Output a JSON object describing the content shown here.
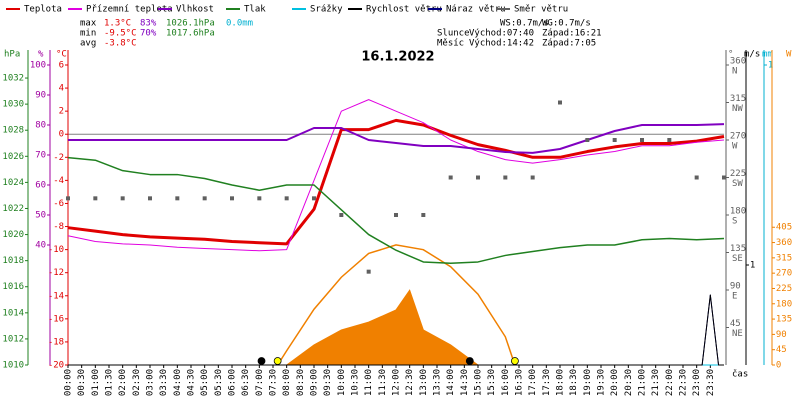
{
  "chart_data": {
    "type": "line",
    "title": "16.1.2022",
    "x_label": "čas",
    "xlim": [
      0,
      24
    ],
    "xticks": [
      {
        "value": 0,
        "label": "00:00"
      },
      {
        "value": 0.5,
        "label": "00:30"
      },
      {
        "value": 1,
        "label": "01:00"
      },
      {
        "value": 1.5,
        "label": "01:30"
      },
      {
        "value": 2,
        "label": "02:00"
      },
      {
        "value": 2.5,
        "label": "02:30"
      },
      {
        "value": 3,
        "label": "03:00"
      },
      {
        "value": 3.5,
        "label": "03:30"
      },
      {
        "value": 4,
        "label": "04:00"
      },
      {
        "value": 4.5,
        "label": "04:30"
      },
      {
        "value": 5,
        "label": "05:00"
      },
      {
        "value": 5.5,
        "label": "05:30"
      },
      {
        "value": 6,
        "label": "06:00"
      },
      {
        "value": 6.5,
        "label": "06:30"
      },
      {
        "value": 7,
        "label": "07:00"
      },
      {
        "value": 7.5,
        "label": "07:30"
      },
      {
        "value": 8,
        "label": "08:00"
      },
      {
        "value": 8.5,
        "label": "08:30"
      },
      {
        "value": 9,
        "label": "09:00"
      },
      {
        "value": 9.5,
        "label": "09:30"
      },
      {
        "value": 10,
        "label": "10:00"
      },
      {
        "value": 10.5,
        "label": "10:30"
      },
      {
        "value": 11,
        "label": "11:00"
      },
      {
        "value": 11.5,
        "label": "11:30"
      },
      {
        "value": 12,
        "label": "12:00"
      },
      {
        "value": 12.5,
        "label": "12:30"
      },
      {
        "value": 13,
        "label": "13:00"
      },
      {
        "value": 13.5,
        "label": "13:30"
      },
      {
        "value": 14,
        "label": "14:00"
      },
      {
        "value": 14.5,
        "label": "14:30"
      },
      {
        "value": 15,
        "label": "15:00"
      },
      {
        "value": 15.5,
        "label": "15:30"
      },
      {
        "value": 16,
        "label": "16:00"
      },
      {
        "value": 16.5,
        "label": "16:30"
      },
      {
        "value": 17,
        "label": "17:00"
      },
      {
        "value": 17.5,
        "label": "17:30"
      },
      {
        "value": 18,
        "label": "18:00"
      },
      {
        "value": 18.5,
        "label": "18:30"
      },
      {
        "value": 19,
        "label": "19:00"
      },
      {
        "value": 19.5,
        "label": "19:30"
      },
      {
        "value": 20,
        "label": "20:00"
      },
      {
        "value": 20.5,
        "label": "20:30"
      },
      {
        "value": 21,
        "label": "21:00"
      },
      {
        "value": 21.5,
        "label": "21:30"
      },
      {
        "value": 22,
        "label": "22:00"
      },
      {
        "value": 22.5,
        "label": "22:30"
      },
      {
        "value": 23,
        "label": "23:00"
      },
      {
        "value": 23.5,
        "label": "23:30"
      }
    ],
    "axis_labels": {
      "y": "°C",
      "y2": "hPa",
      "y3": "%",
      "y4": "°",
      "y5": "m/s",
      "y6": "mm",
      "y7": "W"
    },
    "ylim": [
      -20,
      6
    ],
    "yticks": [
      6,
      4,
      2,
      0,
      -2,
      -4,
      -6,
      -8,
      -10,
      -12,
      -14,
      -16,
      -18,
      -20
    ],
    "y2lim": [
      1010,
      1033
    ],
    "y2ticks": [
      1032,
      1030,
      1028,
      1026,
      1024,
      1022,
      1020,
      1018,
      1016,
      1014,
      1012,
      1010
    ],
    "y3lim": [
      0,
      100
    ],
    "y3ticks": [
      100,
      90,
      80,
      70,
      60,
      50,
      40
    ],
    "y4lim": [
      0,
      360
    ],
    "y4ticks": [
      360,
      315,
      270,
      225,
      180,
      135,
      90,
      45
    ],
    "y4tick_names": [
      "N",
      "NW",
      "W",
      "SW",
      "S",
      "SE",
      "E",
      "NE"
    ],
    "y5lim": [
      0,
      3
    ],
    "y5ticks": [
      1
    ],
    "y6lim": [
      0,
      1
    ],
    "y6ticks": [
      1
    ],
    "y7lim": [
      0,
      882
    ],
    "y7ticks": [
      405,
      360,
      315,
      270,
      225,
      180,
      135,
      90,
      45,
      0
    ],
    "hline": 0,
    "x": [
      0,
      1,
      2,
      3,
      4,
      5,
      6,
      7,
      8,
      9,
      10,
      11,
      12,
      13,
      14,
      15,
      16,
      17,
      18,
      19,
      20,
      21,
      22,
      23,
      24
    ],
    "series": [
      {
        "name": "Teplota",
        "color": "#e00000",
        "axis": "y",
        "style": "line",
        "width": 3,
        "values": [
          -8.1,
          -8.4,
          -8.7,
          -8.9,
          -9.0,
          -9.1,
          -9.3,
          -9.4,
          -9.5,
          -6.5,
          0.4,
          0.4,
          1.2,
          0.8,
          -0.1,
          -0.9,
          -1.4,
          -2.0,
          -2.0,
          -1.5,
          -1.1,
          -0.8,
          -0.8,
          -0.6,
          -0.2
        ]
      },
      {
        "name": "Přízemní teplota",
        "color": "#e000e0",
        "axis": "y",
        "style": "line",
        "width": 1,
        "values": [
          -8.8,
          -9.3,
          -9.5,
          -9.6,
          -9.8,
          -9.9,
          -10.0,
          -10.1,
          -10.0,
          -4.0,
          2.0,
          3.0,
          2.0,
          1.0,
          -0.5,
          -1.5,
          -2.2,
          -2.5,
          -2.2,
          -1.8,
          -1.5,
          -1.0,
          -1.0,
          -0.7,
          -0.5
        ]
      },
      {
        "name": "Vlhkost",
        "color": "#8000c0",
        "axis": "y3",
        "style": "line",
        "width": 2,
        "values": [
          75,
          75,
          75,
          75,
          75,
          75,
          75,
          75,
          75,
          79,
          79,
          75,
          74,
          73,
          73,
          72,
          71,
          70.7,
          72,
          75,
          78,
          80,
          80,
          80,
          80.3
        ]
      },
      {
        "name": "Tlak",
        "color": "#208020",
        "axis": "y2",
        "style": "line",
        "width": 1.5,
        "values": [
          1025.9,
          1025.7,
          1024.9,
          1024.6,
          1024.6,
          1024.3,
          1023.8,
          1023.4,
          1023.8,
          1023.8,
          1021.9,
          1020.0,
          1018.8,
          1017.9,
          1017.8,
          1017.9,
          1018.4,
          1018.7,
          1019.0,
          1019.2,
          1019.2,
          1019.6,
          1019.7,
          1019.6,
          1019.7
        ]
      },
      {
        "name": "Srážky",
        "color": "#00c0e0",
        "axis": "y6",
        "style": "line",
        "width": 1,
        "values": [
          0,
          0,
          0,
          0,
          0,
          0,
          0,
          0,
          0,
          0,
          0,
          0,
          0,
          0,
          0,
          0,
          0,
          0,
          0,
          0,
          0,
          0,
          0,
          0,
          0
        ]
      },
      {
        "name": "Náraz větru",
        "color": "#000080",
        "axis": "y5",
        "style": "line",
        "width": 1,
        "x": [
          0,
          23.2,
          23.5,
          23.8,
          24
        ],
        "values": [
          0,
          0,
          0.7,
          0,
          0
        ]
      },
      {
        "name": "Rychlost větru",
        "color": "#000000",
        "axis": "y5",
        "style": "line",
        "width": 1,
        "x": [
          0,
          23.2,
          23.5,
          23.8,
          24
        ],
        "values": [
          0,
          0,
          0.7,
          0,
          0
        ]
      },
      {
        "name": "Směr větru",
        "color": "#606060",
        "axis": "y4",
        "style": "points",
        "values": [
          200,
          200,
          200,
          200,
          200,
          200,
          200,
          200,
          200,
          200,
          180,
          112,
          180,
          180,
          225,
          225,
          225,
          225,
          315,
          270,
          270,
          270,
          270,
          225,
          225
        ]
      }
    ],
    "legend_order": [
      0,
      1,
      2,
      3,
      4,
      6,
      5,
      7
    ],
    "solar": {
      "color": "#f08000",
      "axis": "y7",
      "x": [
        0,
        7,
        8,
        9,
        10,
        11,
        12,
        12.5,
        13,
        14,
        15,
        24
      ],
      "values": [
        0,
        0,
        0,
        59,
        103,
        126,
        162,
        220,
        103,
        59,
        0,
        0
      ]
    },
    "solar_theoretical": {
      "color": "#f08000",
      "axis": "y7",
      "x": [
        7.67,
        8,
        9,
        10,
        11,
        12,
        13,
        14,
        15,
        16,
        16.35
      ],
      "values": [
        0,
        42,
        164,
        258,
        328,
        353,
        339,
        289,
        208,
        83,
        0
      ]
    },
    "markers": [
      {
        "x": 7.08,
        "color": "#000000"
      },
      {
        "x": 7.67,
        "color": "#ffff00"
      },
      {
        "x": 14.7,
        "color": "#000000"
      },
      {
        "x": 16.35,
        "color": "#ffff00"
      }
    ],
    "stats": [
      [
        "max",
        "1.3°C",
        "83%",
        "1026.1hPa",
        "0.0mm"
      ],
      [
        "min",
        "-9.5°C",
        "70%",
        "1017.6hPa"
      ],
      [
        "avg",
        "-3.8°C"
      ]
    ],
    "info": [
      [
        "WS:0.7m/s",
        "WG:0.7m/s"
      ],
      [
        "Slunce",
        "Východ:07:40",
        "Západ:16:21"
      ],
      [
        "Měsíc",
        "Východ:14:42",
        "Západ:7:05"
      ]
    ]
  }
}
